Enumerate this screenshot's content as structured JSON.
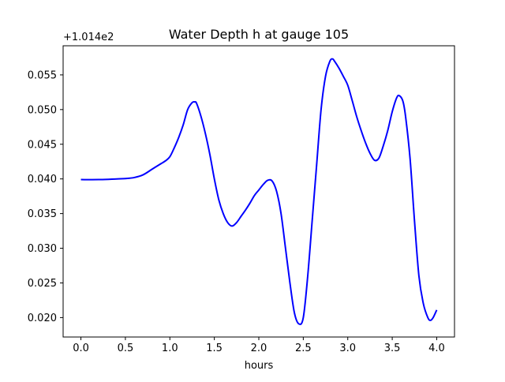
{
  "chart_data": {
    "type": "line",
    "title": "Water Depth h at gauge 105",
    "xlabel": "hours",
    "ylabel": "",
    "offset_label": "+1.014e2",
    "xlim": [
      -0.2,
      4.2
    ],
    "ylim": [
      0.0172,
      0.0592
    ],
    "xticks": [
      0.0,
      0.5,
      1.0,
      1.5,
      2.0,
      2.5,
      3.0,
      3.5,
      4.0
    ],
    "xtick_labels": [
      "0.0",
      "0.5",
      "1.0",
      "1.5",
      "2.0",
      "2.5",
      "3.0",
      "3.5",
      "4.0"
    ],
    "yticks": [
      0.02,
      0.025,
      0.03,
      0.035,
      0.04,
      0.045,
      0.05,
      0.055
    ],
    "ytick_labels": [
      "0.020",
      "0.025",
      "0.030",
      "0.035",
      "0.040",
      "0.045",
      "0.050",
      "0.055"
    ],
    "grid": false,
    "series": [
      {
        "color": "#0000ff",
        "x": [
          0.0,
          0.2,
          0.4,
          0.5,
          0.6,
          0.7,
          0.8,
          0.9,
          0.95,
          1.0,
          1.05,
          1.1,
          1.15,
          1.2,
          1.25,
          1.28,
          1.3,
          1.35,
          1.4,
          1.45,
          1.5,
          1.55,
          1.6,
          1.65,
          1.7,
          1.75,
          1.8,
          1.85,
          1.9,
          1.95,
          2.0,
          2.05,
          2.1,
          2.15,
          2.2,
          2.25,
          2.3,
          2.35,
          2.4,
          2.45,
          2.5,
          2.55,
          2.6,
          2.65,
          2.7,
          2.75,
          2.8,
          2.83,
          2.85,
          2.9,
          2.95,
          3.0,
          3.05,
          3.1,
          3.15,
          3.2,
          3.25,
          3.3,
          3.35,
          3.4,
          3.45,
          3.5,
          3.55,
          3.58,
          3.62,
          3.65,
          3.7,
          3.75,
          3.8,
          3.85,
          3.9,
          3.93,
          3.96,
          4.0
        ],
        "y": [
          0.0399,
          0.0399,
          0.04,
          0.04005,
          0.0402,
          0.0406,
          0.0414,
          0.0422,
          0.0426,
          0.0432,
          0.0445,
          0.046,
          0.0478,
          0.05,
          0.051,
          0.0511,
          0.0509,
          0.049,
          0.0465,
          0.0435,
          0.04,
          0.037,
          0.035,
          0.0337,
          0.0332,
          0.0337,
          0.0346,
          0.0355,
          0.0365,
          0.0376,
          0.0384,
          0.0392,
          0.0398,
          0.0397,
          0.0382,
          0.035,
          0.03,
          0.025,
          0.0207,
          0.0191,
          0.02,
          0.026,
          0.034,
          0.042,
          0.05,
          0.0548,
          0.057,
          0.0573,
          0.057,
          0.056,
          0.0548,
          0.0535,
          0.0513,
          0.049,
          0.047,
          0.0452,
          0.0437,
          0.0427,
          0.043,
          0.0448,
          0.047,
          0.0497,
          0.0517,
          0.052,
          0.0512,
          0.049,
          0.043,
          0.034,
          0.026,
          0.022,
          0.02,
          0.0196,
          0.02,
          0.0211
        ]
      }
    ]
  }
}
